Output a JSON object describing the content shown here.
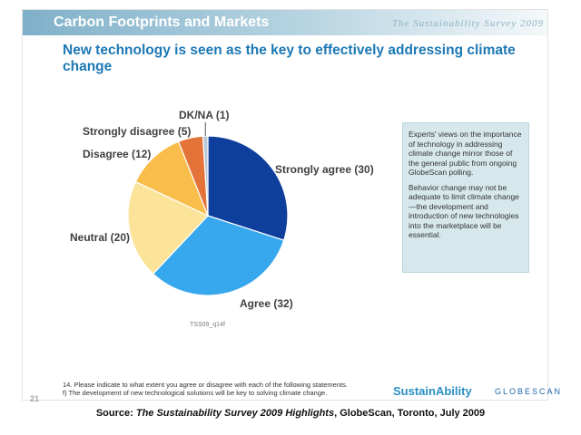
{
  "header": {
    "title": "Carbon Footprints and Markets",
    "brand": "The Sustainability Survey 2009"
  },
  "headline": "New technology is seen as the key to effectively addressing climate change",
  "chart_data": {
    "type": "pie",
    "title": "",
    "unit": "%",
    "categories": [
      "Strongly agree",
      "Agree",
      "Neutral",
      "Disagree",
      "Strongly disagree",
      "DK/NA"
    ],
    "values": [
      30,
      32,
      20,
      12,
      5,
      1
    ],
    "labels": [
      "Strongly agree (30)",
      "Agree (32)",
      "Neutral (20)",
      "Disagree (12)",
      "Strongly disagree (5)",
      "DK/NA (1)"
    ],
    "colors": [
      "#0e3f9c",
      "#37a7ee",
      "#fbe39a",
      "#f9bd4b",
      "#e4733a",
      "#b9c8d6"
    ],
    "legend": "none",
    "start_angle_deg": 0,
    "direction": "clockwise"
  },
  "reference_code": "TSS09_q14f",
  "note_box": {
    "paragraphs": [
      "Experts' views on the importance of technology in addressing climate change mirror those of the general public from ongoing GlobeScan polling.",
      "Behavior change may not be adequate to limit climate change—the development and introduction of new technologies into the marketplace will be essential."
    ]
  },
  "page_number": "21",
  "footnote": "14. Please indicate to what extent you agree or disagree with each of the following statements. f) The development of new technological solutions will be key to solving climate change.",
  "logos": {
    "sustainability": "SustainAbility",
    "globescan": "GLOBESCAN"
  },
  "source": {
    "prefix": "Source: ",
    "title": "The Sustainability Survey 2009 Highlights",
    "suffix": ", GlobeScan, Toronto, July 2009"
  }
}
